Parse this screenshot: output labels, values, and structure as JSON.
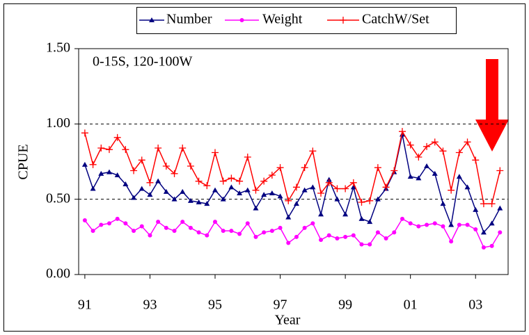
{
  "chart_data": {
    "type": "line",
    "annotation": "0-15S, 120-100W",
    "xlabel": "Year",
    "ylabel": "CPUE",
    "x": [
      1991,
      1991.25,
      1991.5,
      1991.75,
      1992,
      1992.25,
      1992.5,
      1992.75,
      1993,
      1993.25,
      1993.5,
      1993.75,
      1994,
      1994.25,
      1994.5,
      1994.75,
      1995,
      1995.25,
      1995.5,
      1995.75,
      1996,
      1996.25,
      1996.5,
      1996.75,
      1997,
      1997.25,
      1997.5,
      1997.75,
      1998,
      1998.25,
      1998.5,
      1998.75,
      1999,
      1999.25,
      1999.5,
      1999.75,
      2000,
      2000.25,
      2000.5,
      2000.75,
      2001,
      2001.25,
      2001.5,
      2001.75,
      2002,
      2002.25,
      2002.5,
      2002.75,
      2003,
      2003.25,
      2003.5,
      2003.75
    ],
    "series": [
      {
        "name": "Number",
        "color": "#000080",
        "marker": "triangle",
        "values": [
          0.73,
          0.57,
          0.67,
          0.68,
          0.66,
          0.6,
          0.51,
          0.57,
          0.53,
          0.62,
          0.55,
          0.5,
          0.55,
          0.49,
          0.48,
          0.47,
          0.56,
          0.5,
          0.58,
          0.54,
          0.56,
          0.44,
          0.53,
          0.54,
          0.52,
          0.38,
          0.47,
          0.56,
          0.58,
          0.4,
          0.63,
          0.5,
          0.4,
          0.58,
          0.37,
          0.35,
          0.5,
          0.57,
          0.68,
          0.93,
          0.65,
          0.64,
          0.72,
          0.67,
          0.47,
          0.33,
          0.65,
          0.58,
          0.43,
          0.28,
          0.34,
          0.44
        ]
      },
      {
        "name": "Weight",
        "color": "#ff00ff",
        "marker": "circle",
        "values": [
          0.36,
          0.29,
          0.33,
          0.34,
          0.37,
          0.34,
          0.29,
          0.32,
          0.26,
          0.35,
          0.31,
          0.29,
          0.35,
          0.31,
          0.28,
          0.26,
          0.35,
          0.29,
          0.29,
          0.27,
          0.34,
          0.25,
          0.28,
          0.29,
          0.31,
          0.21,
          0.25,
          0.31,
          0.34,
          0.23,
          0.26,
          0.24,
          0.25,
          0.26,
          0.2,
          0.2,
          0.28,
          0.24,
          0.28,
          0.37,
          0.34,
          0.32,
          0.33,
          0.34,
          0.32,
          0.22,
          0.33,
          0.33,
          0.3,
          0.18,
          0.19,
          0.28
        ]
      },
      {
        "name": "CatchW/Set",
        "color": "#ff0000",
        "marker": "plus",
        "values": [
          0.94,
          0.73,
          0.84,
          0.83,
          0.91,
          0.83,
          0.69,
          0.76,
          0.61,
          0.84,
          0.72,
          0.67,
          0.84,
          0.72,
          0.62,
          0.59,
          0.81,
          0.62,
          0.64,
          0.62,
          0.78,
          0.56,
          0.62,
          0.66,
          0.71,
          0.49,
          0.58,
          0.71,
          0.82,
          0.54,
          0.61,
          0.57,
          0.57,
          0.61,
          0.48,
          0.49,
          0.71,
          0.58,
          0.69,
          0.95,
          0.86,
          0.78,
          0.85,
          0.88,
          0.82,
          0.56,
          0.81,
          0.88,
          0.76,
          0.47,
          0.47,
          0.69
        ]
      }
    ],
    "xlim": [
      1990.81,
      2004.0
    ],
    "xticks": [
      {
        "value": 1991,
        "label": "91"
      },
      {
        "value": 1993,
        "label": "93"
      },
      {
        "value": 1995,
        "label": "95"
      },
      {
        "value": 1997,
        "label": "97"
      },
      {
        "value": 1999,
        "label": "99"
      },
      {
        "value": 2001,
        "label": "01"
      },
      {
        "value": 2003,
        "label": "03"
      }
    ],
    "ylim": [
      0,
      1.5
    ],
    "yticks": [
      {
        "value": 0,
        "label": "0.00"
      },
      {
        "value": 0.5,
        "label": "0.50"
      },
      {
        "value": 1,
        "label": "1.00"
      },
      {
        "value": 1.5,
        "label": "1.50"
      }
    ],
    "grid": true,
    "legend": "top"
  }
}
